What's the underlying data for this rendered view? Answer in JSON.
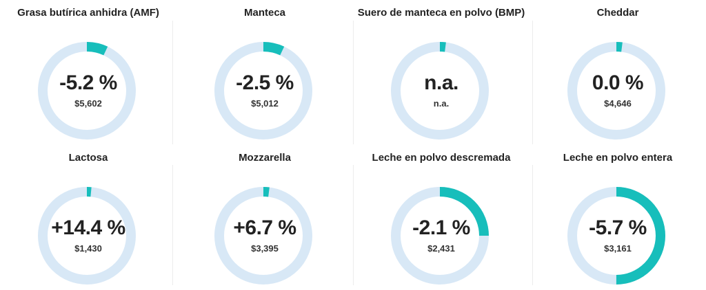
{
  "colors": {
    "track": "#d8e8f6",
    "accent": "#17bebb",
    "text": "#222222"
  },
  "chart_data": {
    "type": "donut-grid",
    "items": [
      {
        "title": "Grasa butírica anhidra (AMF)",
        "change_label": "-5.2 %",
        "price": "$5,602",
        "fill_fraction": 0.07
      },
      {
        "title": "Manteca",
        "change_label": "-2.5 %",
        "price": "$5,012",
        "fill_fraction": 0.07
      },
      {
        "title": "Suero de manteca en polvo (BMP)",
        "change_label": "n.a.",
        "price": "n.a.",
        "fill_fraction": 0.02
      },
      {
        "title": "Cheddar",
        "change_label": "0.0 %",
        "price": "$4,646",
        "fill_fraction": 0.02
      },
      {
        "title": "Lactosa",
        "change_label": "+14.4 %",
        "price": "$1,430",
        "fill_fraction": 0.015
      },
      {
        "title": "Mozzarella",
        "change_label": "+6.7 %",
        "price": "$3,395",
        "fill_fraction": 0.02
      },
      {
        "title": "Leche en polvo descremada",
        "change_label": "-2.1 %",
        "price": "$2,431",
        "fill_fraction": 0.25
      },
      {
        "title": "Leche en polvo entera",
        "change_label": "-5.7 %",
        "price": "$3,161",
        "fill_fraction": 0.5
      }
    ]
  }
}
